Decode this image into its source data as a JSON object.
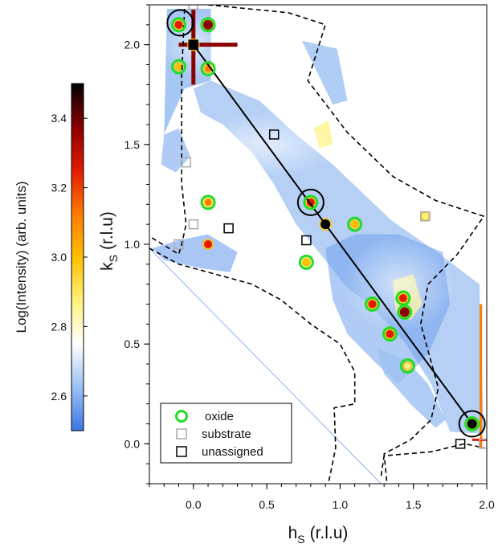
{
  "chart_data": {
    "type": "heatmap",
    "title": "",
    "xlabel": {
      "main": "h",
      "sub": "S",
      "unit": "(r.l.u)"
    },
    "ylabel": {
      "main": "k",
      "sub": "S",
      "unit": "(r.l.u)"
    },
    "xlim": [
      -0.3,
      2.0
    ],
    "ylim": [
      -0.2,
      2.2
    ],
    "x_ticks": [
      "0.0",
      "0.5",
      "1.0",
      "1.5",
      "2.0"
    ],
    "x_tick_values": [
      0.0,
      0.5,
      1.0,
      1.5,
      2.0
    ],
    "y_ticks": [
      "0.0",
      "0.5",
      "1.0",
      "1.5",
      "2.0"
    ],
    "y_tick_values": [
      0.0,
      0.5,
      1.0,
      1.5,
      2.0
    ],
    "colorbar": {
      "label": "Log(Intensity) (arb. units)",
      "range": [
        2.5,
        3.5
      ],
      "ticks": [
        "2.6",
        "2.8",
        "3.0",
        "3.2",
        "3.4"
      ],
      "tick_values": [
        2.6,
        2.8,
        3.0,
        3.2,
        3.4
      ],
      "colors": [
        "#3a78e6",
        "#9cc0f2",
        "#ffffff",
        "#fff27a",
        "#ffc000",
        "#ff7a00",
        "#e21a00",
        "#8a0000",
        "#000000"
      ]
    },
    "legend": {
      "position": "bottom-left",
      "entries": [
        {
          "label": "oxide",
          "marker": "circle",
          "color": "#22dd22"
        },
        {
          "label": "substrate",
          "marker": "square",
          "color": "#aaaaaa"
        },
        {
          "label": "unassigned",
          "marker": "square",
          "color": "#000000"
        }
      ]
    },
    "oxide_peaks": [
      [
        -0.1,
        2.1
      ],
      [
        0.1,
        2.1
      ],
      [
        -0.1,
        1.89
      ],
      [
        0.1,
        1.88
      ],
      [
        0.1,
        1.21
      ],
      [
        0.8,
        1.21
      ],
      [
        1.1,
        1.1
      ],
      [
        0.77,
        0.91
      ],
      [
        1.22,
        0.7
      ],
      [
        1.43,
        0.73
      ],
      [
        1.44,
        0.66
      ],
      [
        1.34,
        0.55
      ],
      [
        1.46,
        0.39
      ],
      [
        1.9,
        0.1
      ]
    ],
    "substrate_peaks": [
      [
        0.0,
        2.2
      ],
      [
        -0.05,
        1.41
      ],
      [
        0.0,
        1.1
      ],
      [
        -0.1,
        1.0
      ],
      [
        1.58,
        1.14
      ],
      [
        1.98,
        0.0
      ]
    ],
    "unassigned_peaks": [
      [
        0.0,
        2.0
      ],
      [
        0.55,
        1.55
      ],
      [
        0.24,
        1.08
      ],
      [
        0.77,
        1.02
      ],
      [
        1.82,
        0.0
      ]
    ],
    "highlighted_peaks": [
      [
        -0.09,
        2.11
      ],
      [
        0.8,
        1.21
      ],
      [
        1.9,
        0.1
      ]
    ],
    "reciprocal_line": {
      "from": [
        0.0,
        2.0
      ],
      "to": [
        1.9,
        0.1
      ]
    },
    "bright_spots": [
      {
        "x": 0.0,
        "y": 2.0,
        "level": 3.5
      },
      {
        "x": 1.9,
        "y": 0.1,
        "level": 3.5
      },
      {
        "x": 0.9,
        "y": 1.1,
        "level": 3.5
      },
      {
        "x": 1.44,
        "y": 0.66,
        "level": 3.4
      },
      {
        "x": 1.43,
        "y": 0.73,
        "level": 3.3
      },
      {
        "x": 1.34,
        "y": 0.55,
        "level": 3.3
      },
      {
        "x": 1.22,
        "y": 0.7,
        "level": 3.2
      },
      {
        "x": 0.8,
        "y": 1.21,
        "level": 3.2
      },
      {
        "x": 1.1,
        "y": 1.1,
        "level": 3.0
      },
      {
        "x": 0.77,
        "y": 0.91,
        "level": 3.0
      },
      {
        "x": 0.1,
        "y": 1.21,
        "level": 3.1
      },
      {
        "x": 0.1,
        "y": 1.0,
        "level": 3.2
      },
      {
        "x": 0.1,
        "y": 2.1,
        "level": 3.4
      },
      {
        "x": -0.1,
        "y": 2.1,
        "level": 3.3
      },
      {
        "x": 0.1,
        "y": 1.88,
        "level": 3.1
      },
      {
        "x": -0.1,
        "y": 1.89,
        "level": 3.0
      },
      {
        "x": 1.46,
        "y": 0.39,
        "level": 2.9
      },
      {
        "x": 1.58,
        "y": 1.14,
        "level": 2.9
      }
    ]
  }
}
